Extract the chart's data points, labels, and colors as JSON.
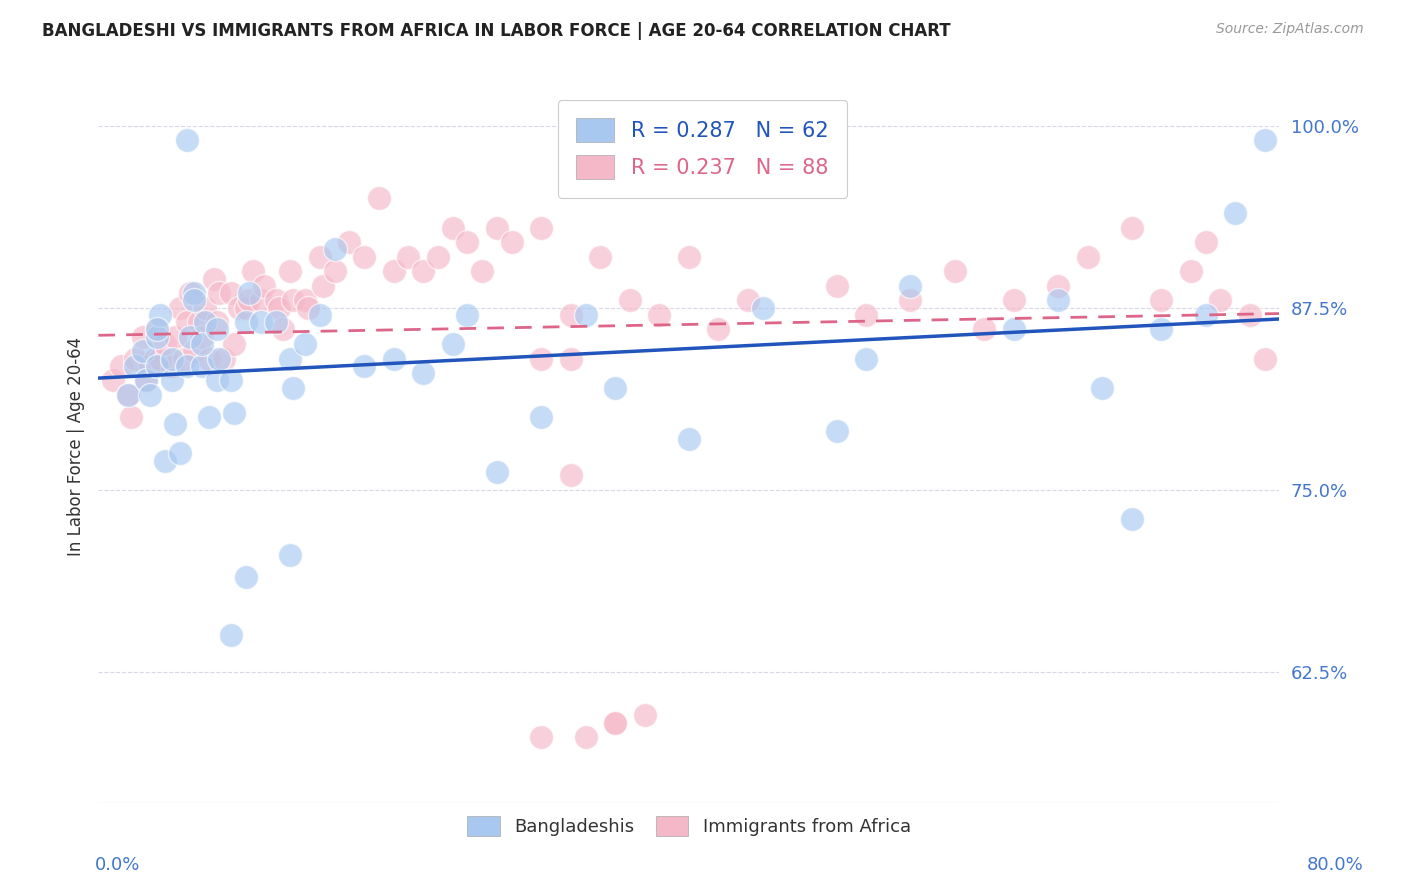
{
  "title": "BANGLADESHI VS IMMIGRANTS FROM AFRICA IN LABOR FORCE | AGE 20-64 CORRELATION CHART",
  "source": "Source: ZipAtlas.com",
  "ylabel": "In Labor Force | Age 20-64",
  "xlim": [
    0.0,
    0.8
  ],
  "ylim": [
    0.535,
    1.025
  ],
  "yticks": [
    0.625,
    0.75,
    0.875,
    1.0
  ],
  "ytick_labels": [
    "62.5%",
    "75.0%",
    "87.5%",
    "100.0%"
  ],
  "xticks": [
    0.0,
    0.1,
    0.2,
    0.3,
    0.4,
    0.5,
    0.6,
    0.7,
    0.8
  ],
  "xtick_labels": [
    "",
    "",
    "",
    "",
    "",
    "",
    "",
    "",
    ""
  ],
  "blue_R": 0.287,
  "blue_N": 62,
  "pink_R": 0.237,
  "pink_N": 88,
  "legend_label_blue": "Bangladeshis",
  "legend_label_pink": "Immigrants from Africa",
  "blue_color": "#A8C8F0",
  "pink_color": "#F5B8C8",
  "blue_line_color": "#2255BB",
  "pink_line_color": "#DD6688",
  "title_color": "#222222",
  "axis_label_color": "#4477CC",
  "grid_color": "#D8D8E8",
  "background_color": "#FFFFFF",
  "blue_x": [
    0.02,
    0.025,
    0.03,
    0.032,
    0.035,
    0.04,
    0.04,
    0.042,
    0.045,
    0.05,
    0.05,
    0.052,
    0.055,
    0.06,
    0.062,
    0.065,
    0.07,
    0.072,
    0.075,
    0.08,
    0.082,
    0.09,
    0.092,
    0.1,
    0.102,
    0.11,
    0.12,
    0.13,
    0.132,
    0.14,
    0.15,
    0.16,
    0.18,
    0.2,
    0.22,
    0.24,
    0.25,
    0.27,
    0.3,
    0.33,
    0.35,
    0.4,
    0.45,
    0.5,
    0.52,
    0.55,
    0.62,
    0.65,
    0.68,
    0.7,
    0.72,
    0.75,
    0.77,
    0.79,
    0.04,
    0.06,
    0.065,
    0.07,
    0.08,
    0.09,
    0.1,
    0.13
  ],
  "blue_y": [
    0.815,
    0.835,
    0.845,
    0.825,
    0.815,
    0.835,
    0.855,
    0.87,
    0.77,
    0.825,
    0.84,
    0.795,
    0.775,
    0.835,
    0.855,
    0.885,
    0.835,
    0.865,
    0.8,
    0.825,
    0.84,
    0.825,
    0.803,
    0.865,
    0.885,
    0.865,
    0.865,
    0.84,
    0.82,
    0.85,
    0.87,
    0.915,
    0.835,
    0.84,
    0.83,
    0.85,
    0.87,
    0.762,
    0.8,
    0.87,
    0.82,
    0.785,
    0.875,
    0.79,
    0.84,
    0.89,
    0.86,
    0.88,
    0.82,
    0.73,
    0.86,
    0.87,
    0.94,
    0.99,
    0.86,
    0.99,
    0.88,
    0.85,
    0.86,
    0.65,
    0.69,
    0.705
  ],
  "pink_x": [
    0.01,
    0.015,
    0.02,
    0.022,
    0.025,
    0.03,
    0.032,
    0.035,
    0.038,
    0.04,
    0.042,
    0.045,
    0.05,
    0.052,
    0.055,
    0.058,
    0.06,
    0.062,
    0.065,
    0.068,
    0.07,
    0.072,
    0.075,
    0.078,
    0.08,
    0.082,
    0.085,
    0.09,
    0.092,
    0.095,
    0.1,
    0.102,
    0.105,
    0.11,
    0.112,
    0.12,
    0.122,
    0.125,
    0.13,
    0.132,
    0.14,
    0.142,
    0.15,
    0.152,
    0.16,
    0.17,
    0.18,
    0.19,
    0.2,
    0.21,
    0.22,
    0.23,
    0.24,
    0.25,
    0.26,
    0.27,
    0.28,
    0.3,
    0.32,
    0.34,
    0.36,
    0.38,
    0.4,
    0.42,
    0.44,
    0.45,
    0.5,
    0.52,
    0.55,
    0.58,
    0.6,
    0.62,
    0.65,
    0.67,
    0.7,
    0.72,
    0.74,
    0.75,
    0.76,
    0.78,
    0.79,
    0.3,
    0.35,
    0.3,
    0.32,
    0.33,
    0.35,
    0.37,
    0.32
  ],
  "pink_y": [
    0.825,
    0.835,
    0.815,
    0.8,
    0.84,
    0.855,
    0.825,
    0.835,
    0.84,
    0.86,
    0.84,
    0.85,
    0.835,
    0.855,
    0.875,
    0.84,
    0.865,
    0.885,
    0.845,
    0.865,
    0.855,
    0.875,
    0.84,
    0.895,
    0.865,
    0.885,
    0.84,
    0.885,
    0.85,
    0.875,
    0.875,
    0.88,
    0.9,
    0.88,
    0.89,
    0.88,
    0.875,
    0.86,
    0.9,
    0.88,
    0.88,
    0.875,
    0.91,
    0.89,
    0.9,
    0.92,
    0.91,
    0.95,
    0.9,
    0.91,
    0.9,
    0.91,
    0.93,
    0.92,
    0.9,
    0.93,
    0.92,
    0.93,
    0.87,
    0.91,
    0.88,
    0.87,
    0.91,
    0.86,
    0.88,
    0.99,
    0.89,
    0.87,
    0.88,
    0.9,
    0.86,
    0.88,
    0.89,
    0.91,
    0.93,
    0.88,
    0.9,
    0.92,
    0.88,
    0.87,
    0.84,
    0.84,
    0.59,
    0.58,
    0.76,
    0.58,
    0.59,
    0.595,
    0.84
  ]
}
